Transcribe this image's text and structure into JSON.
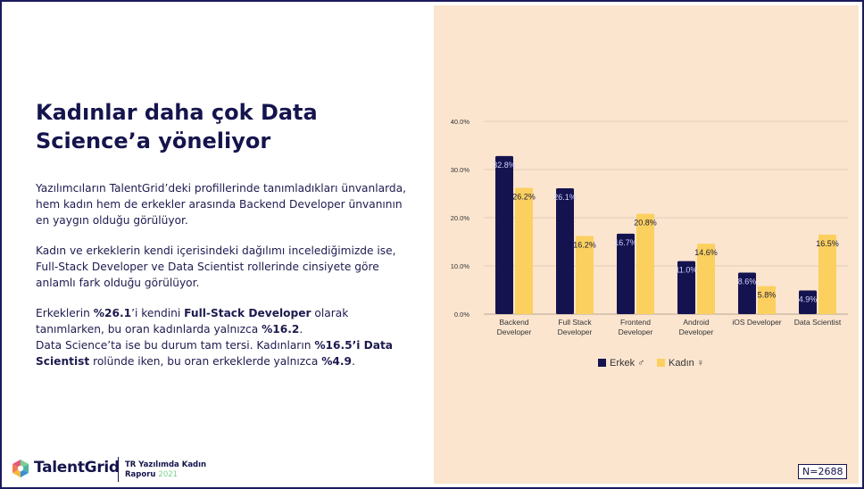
{
  "slide": {
    "title": "Kadınlar daha çok Data Science’a yöneliyor",
    "paragraphs": [
      [
        {
          "t": "Yazılımcıların TalentGrid’deki profillerinde tanımladıkları ünvanlarda, hem kadın hem de erkekler arasında Backend Developer ünvanının en yaygın olduğu görülüyor.",
          "b": false
        }
      ],
      [
        {
          "t": "Kadın ve erkeklerin kendi içerisindeki dağılımı incelediğimizde ise, Full-Stack Developer ve Data Scientist rollerinde cinsiyete göre anlamlı fark olduğu görülüyor.",
          "b": false
        }
      ],
      [
        {
          "t": "Erkeklerin ",
          "b": false
        },
        {
          "t": "%26.1",
          "b": true
        },
        {
          "t": "’i kendini ",
          "b": false
        },
        {
          "t": "Full-Stack Developer",
          "b": true
        },
        {
          "t": " olarak tanımlarken, bu oran kadınlarda yalnızca ",
          "b": false
        },
        {
          "t": "%16.2",
          "b": true
        },
        {
          "t": ".",
          "b": false
        },
        {
          "br": true
        },
        {
          "t": "Data Science’ta ise bu durum tam tersi. Kadınların ",
          "b": false
        },
        {
          "t": "%16.5’i Data Scientist",
          "b": true
        },
        {
          "t": " rolünde iken, bu oran erkeklerde yalnızca ",
          "b": false
        },
        {
          "t": "%4.9",
          "b": true
        },
        {
          "t": ".",
          "b": false
        }
      ]
    ],
    "logo": {
      "name": "TalentGrid",
      "report_line1": "TR Yazılımda Kadın",
      "report_line2": "Raporu",
      "report_year": "2021",
      "icon": "talentgrid-logo-icon"
    },
    "sample_size": "N=2688"
  },
  "colors": {
    "male": "#15134f",
    "female": "#fbd05e",
    "panel_bg": "#fbe5cf",
    "grid": "#e2cdb8",
    "text": "#15144d"
  },
  "chart_data": {
    "type": "bar",
    "categories": [
      [
        "Backend",
        "Developer"
      ],
      [
        "Full Stack",
        "Developer"
      ],
      [
        "Frontend",
        "Developer"
      ],
      [
        "Android",
        "Developer"
      ],
      [
        "iOS Developer"
      ],
      [
        "Data Scientist"
      ]
    ],
    "series": [
      {
        "name": "Erkek ♂",
        "color": "#15134f",
        "values": [
          32.8,
          26.1,
          16.7,
          11.0,
          8.6,
          4.9
        ],
        "labels": [
          "32.8%",
          "26.1%",
          "16.7%",
          "11.0%",
          "8.6%",
          "4.9%"
        ]
      },
      {
        "name": "Kadın ♀",
        "color": "#fbd05e",
        "values": [
          26.2,
          16.2,
          20.8,
          14.6,
          5.8,
          16.5
        ],
        "labels": [
          "26.2%",
          "16.2%",
          "20.8%",
          "14.6%",
          "5.8%",
          "16.5%"
        ]
      }
    ],
    "ylim": [
      0,
      40
    ],
    "yticks": [
      0,
      10,
      20,
      30,
      40
    ],
    "ytick_labels": [
      "0.0%",
      "10.0%",
      "20.0%",
      "30.0%",
      "40.0%"
    ],
    "title": "",
    "xlabel": "",
    "ylabel": "",
    "grid": true,
    "legend_position": "bottom"
  }
}
